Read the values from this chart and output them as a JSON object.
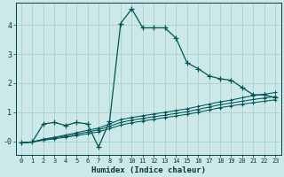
{
  "xlabel": "Humidex (Indice chaleur)",
  "bg_color": "#cce8e8",
  "grid_color": "#a8d0d0",
  "line_color": "#005555",
  "x_ticks": [
    0,
    1,
    2,
    3,
    4,
    5,
    6,
    7,
    8,
    9,
    10,
    11,
    12,
    13,
    14,
    15,
    16,
    17,
    18,
    19,
    20,
    21,
    22,
    23
  ],
  "y_ticks": [
    0,
    1,
    2,
    3,
    4
  ],
  "ylim": [
    -0.45,
    4.75
  ],
  "xlim": [
    -0.5,
    23.5
  ],
  "series1_x": [
    0,
    1,
    2,
    3,
    4,
    5,
    6,
    7,
    8,
    9,
    10,
    11,
    12,
    13,
    14,
    15,
    16,
    17,
    18,
    19,
    20,
    21,
    22,
    23
  ],
  "series1_y": [
    -0.05,
    -0.02,
    0.6,
    0.65,
    0.55,
    0.65,
    0.6,
    -0.2,
    0.7,
    4.05,
    4.55,
    3.9,
    3.9,
    3.9,
    3.55,
    2.7,
    2.5,
    2.25,
    2.15,
    2.1,
    1.85,
    1.6,
    1.6,
    1.5
  ],
  "series2_x": [
    0,
    1,
    2,
    3,
    4,
    5,
    6,
    7,
    8,
    9,
    10,
    11,
    12,
    13,
    14,
    15,
    16,
    17,
    18,
    19,
    20,
    21,
    22,
    23
  ],
  "series2_y": [
    -0.05,
    -0.02,
    0.08,
    0.14,
    0.22,
    0.3,
    0.38,
    0.46,
    0.6,
    0.75,
    0.82,
    0.88,
    0.94,
    1.0,
    1.06,
    1.12,
    1.2,
    1.28,
    1.36,
    1.42,
    1.5,
    1.57,
    1.62,
    1.68
  ],
  "series3_x": [
    0,
    1,
    2,
    3,
    4,
    5,
    6,
    7,
    8,
    9,
    10,
    11,
    12,
    13,
    14,
    15,
    16,
    17,
    18,
    19,
    20,
    21,
    22,
    23
  ],
  "series3_y": [
    -0.05,
    -0.02,
    0.06,
    0.12,
    0.18,
    0.25,
    0.32,
    0.4,
    0.52,
    0.65,
    0.73,
    0.79,
    0.85,
    0.9,
    0.96,
    1.02,
    1.1,
    1.18,
    1.26,
    1.32,
    1.38,
    1.44,
    1.49,
    1.54
  ],
  "series4_x": [
    0,
    1,
    2,
    3,
    4,
    5,
    6,
    7,
    8,
    9,
    10,
    11,
    12,
    13,
    14,
    15,
    16,
    17,
    18,
    19,
    20,
    21,
    22,
    23
  ],
  "series4_y": [
    -0.05,
    -0.02,
    0.04,
    0.09,
    0.14,
    0.2,
    0.26,
    0.33,
    0.44,
    0.56,
    0.64,
    0.7,
    0.76,
    0.82,
    0.87,
    0.93,
    1.0,
    1.08,
    1.16,
    1.22,
    1.28,
    1.33,
    1.38,
    1.43
  ]
}
